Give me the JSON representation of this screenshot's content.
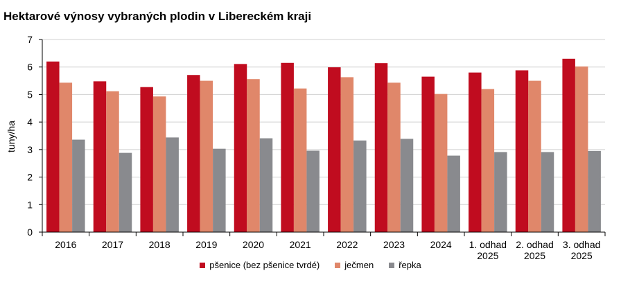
{
  "chart_data": {
    "type": "bar",
    "title": "Hektarové výnosy vybraných plodin v Libereckém kraji",
    "ylabel": "tuny/ha",
    "xlabel": "",
    "ylim": [
      0,
      7
    ],
    "yticks": [
      0,
      1,
      2,
      3,
      4,
      5,
      6,
      7
    ],
    "grid": "horizontal",
    "legend_position": "bottom",
    "categories": [
      [
        "2016"
      ],
      [
        "2017"
      ],
      [
        "2018"
      ],
      [
        "2019"
      ],
      [
        "2020"
      ],
      [
        "2021"
      ],
      [
        "2022"
      ],
      [
        "2023"
      ],
      [
        "2024"
      ],
      [
        "1. odhad",
        "2025"
      ],
      [
        "2. odhad",
        "2025"
      ],
      [
        "3. odhad",
        "2025"
      ]
    ],
    "series": [
      {
        "name": "pšenice (bez pšenice tvrdé)",
        "color": "#C00C1F",
        "values": [
          6.2,
          5.48,
          5.27,
          5.71,
          6.11,
          6.15,
          5.99,
          6.14,
          5.65,
          5.8,
          5.88,
          6.3
        ]
      },
      {
        "name": "ječmen",
        "color": "#E0876A",
        "values": [
          5.43,
          5.12,
          4.93,
          5.5,
          5.56,
          5.22,
          5.63,
          5.43,
          5.02,
          5.2,
          5.5,
          6.02
        ]
      },
      {
        "name": "řepka",
        "color": "#898A8E",
        "values": [
          3.36,
          2.88,
          3.44,
          3.03,
          3.41,
          2.96,
          3.33,
          3.39,
          2.78,
          2.91,
          2.91,
          2.95
        ]
      }
    ]
  }
}
